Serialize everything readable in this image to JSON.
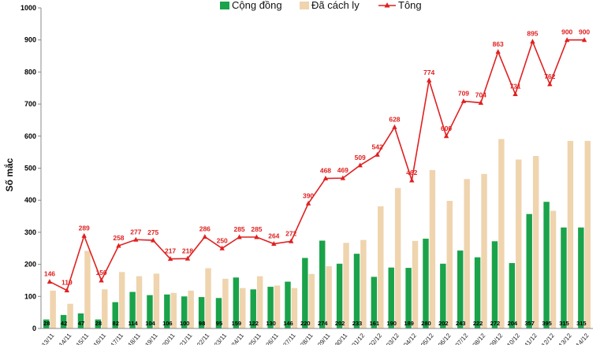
{
  "chart_data": {
    "type": "bar",
    "title": "",
    "ylabel": "Số mắc",
    "ylim": [
      0,
      1000
    ],
    "yticks": [
      0,
      100,
      200,
      300,
      400,
      500,
      600,
      700,
      800,
      900,
      1000
    ],
    "grid": false,
    "legend_position": "top-center",
    "categories": [
      "13/11",
      "14/11",
      "15/11",
      "16/11",
      "17/11",
      "18/11",
      "19/11",
      "20/11",
      "21/11",
      "22/11",
      "23/11",
      "24/11",
      "25/11",
      "26/11",
      "27/11",
      "28/11",
      "29/11",
      "30/11",
      "01/12",
      "02/12",
      "03/12",
      "04/12",
      "05/12",
      "06/12",
      "07/12",
      "08/12",
      "09/12",
      "10/12",
      "11/12",
      "12/12",
      "13/12",
      "14/12"
    ],
    "series": [
      {
        "name": "Cộng đồng",
        "type": "bar",
        "color": "#1aa34a",
        "values": [
          28,
          42,
          47,
          28,
          82,
          114,
          104,
          106,
          100,
          98,
          95,
          159,
          122,
          130,
          146,
          220,
          274,
          202,
          233,
          161,
          190,
          189,
          280,
          202,
          243,
          222,
          272,
          204,
          357,
          395,
          315,
          315
        ]
      },
      {
        "name": "Đã cách ly",
        "type": "bar",
        "color": "#efd4ae",
        "values": [
          118,
          77,
          242,
          122,
          176,
          163,
          171,
          111,
          118,
          188,
          155,
          126,
          163,
          134,
          126,
          170,
          194,
          267,
          276,
          381,
          438,
          273,
          494,
          398,
          466,
          482,
          591,
          527,
          538,
          367,
          585,
          585
        ]
      },
      {
        "name": "Tổng",
        "type": "line",
        "color": "#e02020",
        "values": [
          146,
          119,
          289,
          150,
          258,
          277,
          275,
          217,
          218,
          286,
          250,
          285,
          285,
          264,
          272,
          390,
          468,
          469,
          509,
          542,
          628,
          462,
          774,
          600,
          709,
          704,
          863,
          731,
          895,
          762,
          900,
          900
        ]
      }
    ],
    "visible_x_labels": [
      "13/11",
      "14/11",
      "15/11",
      "16/11",
      "17/11",
      "18/11",
      "19/11",
      "20/11",
      "21/11",
      "22/11",
      "23/11",
      "24/11",
      "25/11",
      "26/11",
      "27/11",
      "28/11",
      "29/11",
      "30/11",
      "01/12",
      "02/12",
      "03/12",
      "04/12",
      "05/12",
      "06/12",
      "07/12",
      "08/12",
      "09/12",
      "10/12",
      "11/12",
      "12/12",
      "13/12",
      "14/12"
    ]
  },
  "legend": [
    {
      "label": "Cộng đồng",
      "color": "#1aa34a"
    },
    {
      "label": "Đã cách ly",
      "color": "#efd4ae"
    },
    {
      "label": "Tông",
      "color": "#e02020"
    }
  ]
}
